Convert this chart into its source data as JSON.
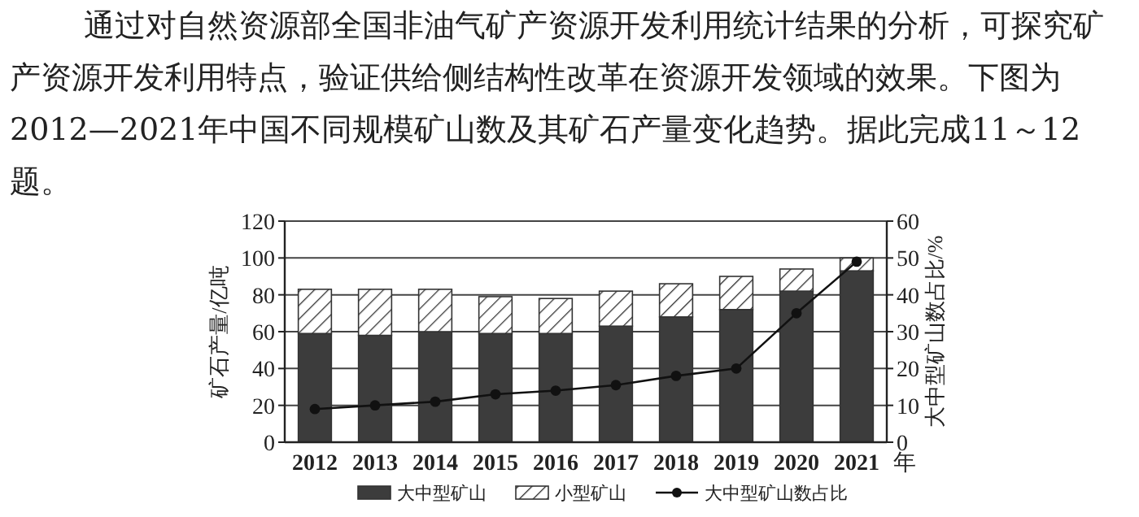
{
  "chart_data": {
    "type": "bar",
    "stacked": true,
    "annotations": [
      "通过对自然资源部全国非油气矿产资源开发利用统计结果的分析，可探究矿产资源开发利用特点，验证供给侧结构性改革在资源开发领域的效果。下图为2012—2021年中国不同规模矿山数及其矿石产量变化趋势。据此完成11～12题。"
    ],
    "ylabel": "矿石产量/亿吨",
    "y2label": "大中型矿山数占比/%",
    "xlabel": "年",
    "categories": [
      "2012",
      "2013",
      "2014",
      "2015",
      "2016",
      "2017",
      "2018",
      "2019",
      "2020",
      "2021"
    ],
    "series": [
      {
        "name": "大中型矿山",
        "color": "#3c3c3c",
        "values": [
          59,
          58,
          60,
          59,
          59,
          63,
          68,
          72,
          82,
          93
        ]
      },
      {
        "name": "小型矿山",
        "color": "#333333",
        "values": [
          24,
          25,
          23,
          20,
          19,
          19,
          18,
          18,
          12,
          7
        ]
      },
      {
        "name": "大中型矿山数占比",
        "type": "line",
        "axis": "y2",
        "color": "#111111",
        "values": [
          9,
          10,
          11,
          13,
          14,
          15.5,
          18,
          20,
          35,
          49
        ]
      }
    ],
    "marker": "circle",
    "ylim": [
      0,
      120
    ],
    "yticks": [
      0,
      20,
      40,
      60,
      80,
      100,
      120
    ],
    "y2lim": [
      0,
      60
    ],
    "y2ticks": [
      0,
      10,
      20,
      30,
      40,
      50,
      60
    ],
    "grid": "y",
    "legend": "bottom"
  }
}
